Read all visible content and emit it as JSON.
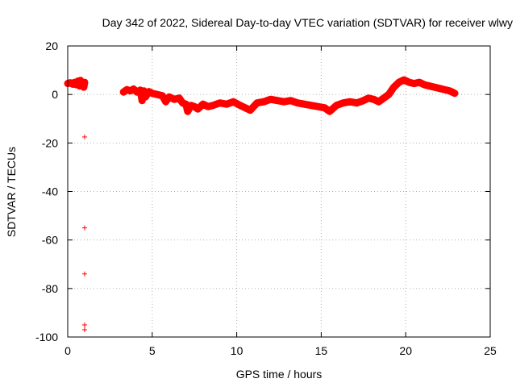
{
  "chart_data": {
    "type": "scatter",
    "title": "Day 342 of 2022, Sidereal Day-to-day VTEC variation (SDTVAR) for receiver wlwy",
    "xlabel": "GPS time / hours",
    "ylabel": "SDTVAR / TECUs",
    "xlim": [
      0,
      25
    ],
    "ylim": [
      -100,
      20
    ],
    "xticks": [
      "0",
      "5",
      "10",
      "15",
      "20",
      "25"
    ],
    "yticks": [
      "20",
      "0",
      "-20",
      "-40",
      "-60",
      "-80",
      "-100"
    ],
    "grid": true,
    "marker": "+",
    "color": "#ff0000",
    "series": [
      {
        "name": "SDTVAR",
        "points": [
          [
            0.0,
            4.5
          ],
          [
            0.15,
            4.8
          ],
          [
            0.3,
            4.2
          ],
          [
            0.4,
            5.0
          ],
          [
            0.5,
            4.0
          ],
          [
            0.6,
            5.5
          ],
          [
            0.7,
            3.5
          ],
          [
            0.75,
            5.8
          ],
          [
            0.85,
            4.5
          ],
          [
            0.95,
            3.0
          ],
          [
            1.0,
            5.0
          ],
          [
            1.0,
            -17.5
          ],
          [
            1.0,
            -55.0
          ],
          [
            1.0,
            -74.0
          ],
          [
            1.0,
            -95.0
          ],
          [
            1.0,
            -97.0
          ],
          [
            3.3,
            1.0
          ],
          [
            3.5,
            2.0
          ],
          [
            3.7,
            1.5
          ],
          [
            3.9,
            2.2
          ],
          [
            4.1,
            1.0
          ],
          [
            4.3,
            1.8
          ],
          [
            4.4,
            -2.5
          ],
          [
            4.5,
            1.5
          ],
          [
            4.6,
            -1.0
          ],
          [
            4.8,
            1.2
          ],
          [
            5.0,
            0.5
          ],
          [
            5.3,
            0.0
          ],
          [
            5.6,
            -0.5
          ],
          [
            5.8,
            -3.0
          ],
          [
            6.0,
            -1.0
          ],
          [
            6.3,
            -2.0
          ],
          [
            6.6,
            -1.5
          ],
          [
            6.8,
            -3.5
          ],
          [
            7.0,
            -4.0
          ],
          [
            7.1,
            -7.0
          ],
          [
            7.3,
            -4.5
          ],
          [
            7.5,
            -5.0
          ],
          [
            7.7,
            -6.0
          ],
          [
            8.0,
            -4.0
          ],
          [
            8.3,
            -5.0
          ],
          [
            8.6,
            -4.5
          ],
          [
            9.0,
            -3.5
          ],
          [
            9.4,
            -4.0
          ],
          [
            9.8,
            -3.0
          ],
          [
            10.2,
            -4.5
          ],
          [
            10.5,
            -5.5
          ],
          [
            10.8,
            -6.5
          ],
          [
            11.2,
            -3.5
          ],
          [
            11.6,
            -3.0
          ],
          [
            12.0,
            -2.0
          ],
          [
            12.4,
            -2.5
          ],
          [
            12.8,
            -3.0
          ],
          [
            13.2,
            -2.5
          ],
          [
            13.6,
            -3.5
          ],
          [
            14.0,
            -4.0
          ],
          [
            14.4,
            -4.5
          ],
          [
            14.8,
            -5.0
          ],
          [
            15.2,
            -5.5
          ],
          [
            15.5,
            -7.0
          ],
          [
            15.9,
            -4.5
          ],
          [
            16.3,
            -3.5
          ],
          [
            16.7,
            -3.0
          ],
          [
            17.1,
            -3.5
          ],
          [
            17.5,
            -2.5
          ],
          [
            17.8,
            -1.5
          ],
          [
            18.1,
            -2.0
          ],
          [
            18.4,
            -3.0
          ],
          [
            18.7,
            -1.5
          ],
          [
            19.0,
            0.0
          ],
          [
            19.3,
            3.0
          ],
          [
            19.6,
            5.0
          ],
          [
            19.9,
            6.0
          ],
          [
            20.2,
            5.0
          ],
          [
            20.5,
            4.5
          ],
          [
            20.8,
            5.0
          ],
          [
            21.1,
            4.0
          ],
          [
            21.4,
            3.5
          ],
          [
            21.7,
            3.0
          ],
          [
            22.0,
            2.5
          ],
          [
            22.3,
            2.0
          ],
          [
            22.6,
            1.5
          ],
          [
            22.9,
            0.5
          ]
        ]
      }
    ]
  }
}
